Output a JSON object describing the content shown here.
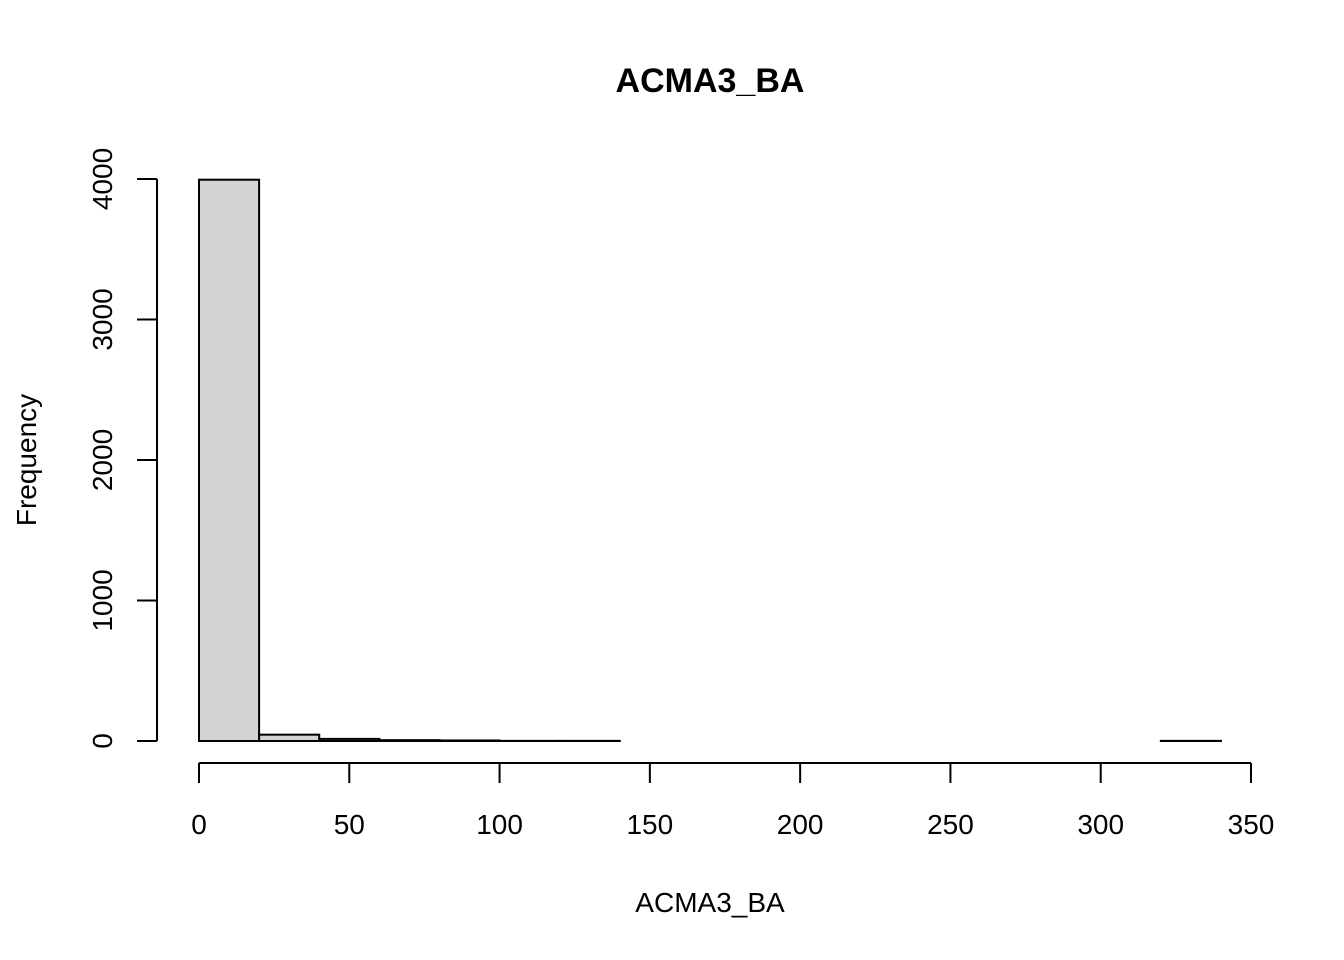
{
  "chart_data": {
    "type": "bar",
    "subtype": "histogram",
    "title": "ACMA3_BA",
    "xlabel": "ACMA3_BA",
    "ylabel": "Frequency",
    "bin_edges": [
      0,
      20,
      40,
      60,
      80,
      100,
      120,
      140,
      160,
      180,
      200,
      220,
      240,
      260,
      280,
      300,
      320,
      340
    ],
    "values": [
      3995,
      45,
      15,
      6,
      4,
      1,
      1,
      0,
      0,
      0,
      0,
      0,
      0,
      0,
      0,
      0,
      1
    ],
    "xlim": [
      0,
      350
    ],
    "ylim": [
      0,
      4000
    ],
    "x_ticks": [
      0,
      50,
      100,
      150,
      200,
      250,
      300,
      350
    ],
    "y_ticks": [
      0,
      1000,
      2000,
      3000,
      4000
    ],
    "x_tick_labels": [
      "0",
      "50",
      "100",
      "150",
      "200",
      "250",
      "300",
      "350"
    ],
    "y_tick_labels": [
      "0",
      "1000",
      "2000",
      "3000",
      "4000"
    ],
    "bar_fill": "#d3d3d3",
    "bar_stroke": "#000000",
    "grid": false,
    "legend": "none"
  }
}
